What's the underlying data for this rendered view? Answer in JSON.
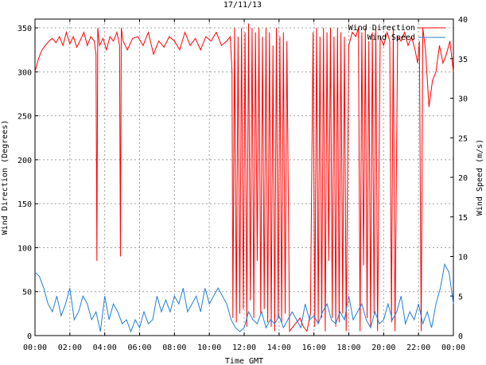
{
  "chart_data": {
    "type": "line",
    "title": "17/11/13",
    "xlabel": "Time GMT",
    "ylabel": "Wind Direction (Degrees)",
    "y2label": "Wind Speed (m/s)",
    "x_tick_labels": [
      "00:00",
      "02:00",
      "04:00",
      "06:00",
      "08:00",
      "10:00",
      "12:00",
      "14:00",
      "16:00",
      "18:00",
      "20:00",
      "22:00",
      "00:00"
    ],
    "xlim_hours": [
      0,
      24
    ],
    "ylim": [
      0,
      360
    ],
    "y_ticks": [
      0,
      50,
      100,
      150,
      200,
      250,
      300,
      350
    ],
    "y2lim": [
      0,
      40
    ],
    "y2_ticks": [
      0,
      5,
      10,
      15,
      20,
      25,
      30,
      35,
      40
    ],
    "grid": true,
    "legend_position": "top-right",
    "colors": {
      "direction": "#ff0000",
      "speed": "#1f7fd8"
    },
    "series": [
      {
        "name": "Wind Direction",
        "axis": "left",
        "x": [
          0,
          0.2,
          0.4,
          0.6,
          0.8,
          1.0,
          1.2,
          1.4,
          1.6,
          1.8,
          2.0,
          2.2,
          2.4,
          2.6,
          2.8,
          3.0,
          3.2,
          3.4,
          3.5,
          3.55,
          3.6,
          3.7,
          3.9,
          4.1,
          4.3,
          4.5,
          4.7,
          4.85,
          4.9,
          4.95,
          5.05,
          5.3,
          5.6,
          5.9,
          6.2,
          6.5,
          6.8,
          7.1,
          7.4,
          7.7,
          8.0,
          8.3,
          8.6,
          8.9,
          9.2,
          9.5,
          9.8,
          10.1,
          10.4,
          10.7,
          11.0,
          11.2,
          11.3,
          11.35,
          11.45,
          11.55,
          11.65,
          11.75,
          11.85,
          11.95,
          12.05,
          12.15,
          12.25,
          12.35,
          12.45,
          12.55,
          12.65,
          12.75,
          12.85,
          12.95,
          13.05,
          13.15,
          13.25,
          13.35,
          13.45,
          13.55,
          13.65,
          13.75,
          13.85,
          13.95,
          14.05,
          14.15,
          14.25,
          14.35,
          14.45,
          14.6,
          14.8,
          15.0,
          15.2,
          15.4,
          15.6,
          15.8,
          15.95,
          16.05,
          16.15,
          16.25,
          16.35,
          16.45,
          16.55,
          16.65,
          16.75,
          16.85,
          16.95,
          17.05,
          17.15,
          17.25,
          17.35,
          17.45,
          17.55,
          17.65,
          17.75,
          17.85,
          18.0,
          18.2,
          18.4,
          18.55,
          18.65,
          18.75,
          18.85,
          18.95,
          19.05,
          19.15,
          19.25,
          19.35,
          19.45,
          19.55,
          19.65,
          19.8,
          20.0,
          20.2,
          20.35,
          20.45,
          20.55,
          20.65,
          20.8,
          21.0,
          21.2,
          21.4,
          21.6,
          21.8,
          21.95,
          22.05,
          22.15,
          22.25,
          22.4,
          22.6,
          22.8,
          23.0,
          23.2,
          23.4,
          23.6,
          23.8,
          24.0
        ],
        "values": [
          300,
          315,
          325,
          330,
          335,
          338,
          333,
          340,
          330,
          345,
          332,
          340,
          328,
          336,
          345,
          330,
          340,
          335,
          320,
          85,
          350,
          330,
          338,
          325,
          340,
          335,
          345,
          330,
          90,
          350,
          335,
          325,
          338,
          340,
          330,
          345,
          320,
          335,
          328,
          340,
          335,
          325,
          345,
          330,
          338,
          325,
          340,
          335,
          345,
          330,
          335,
          340,
          300,
          20,
          350,
          15,
          340,
          25,
          350,
          30,
          345,
          10,
          355,
          40,
          350,
          20,
          345,
          85,
          350,
          25,
          340,
          30,
          350,
          15,
          345,
          10,
          330,
          5,
          350,
          20,
          340,
          15,
          345,
          25,
          335,
          5,
          10,
          15,
          20,
          10,
          5,
          25,
          345,
          10,
          350,
          15,
          340,
          20,
          350,
          5,
          345,
          85,
          350,
          20,
          340,
          10,
          350,
          15,
          345,
          25,
          340,
          5,
          330,
          345,
          340,
          350,
          5,
          345,
          80,
          350,
          20,
          335,
          10,
          345,
          25,
          350,
          5,
          340,
          330,
          345,
          335,
          15,
          350,
          5,
          340,
          335,
          345,
          330,
          340,
          325,
          310,
          335,
          5,
          350,
          325,
          260,
          290,
          300,
          330,
          310,
          320,
          335,
          300
        ]
      },
      {
        "name": "Wind Speed",
        "axis": "right",
        "x": [
          0,
          0.25,
          0.5,
          0.75,
          1.0,
          1.25,
          1.5,
          1.75,
          2.0,
          2.25,
          2.5,
          2.75,
          3.0,
          3.25,
          3.5,
          3.75,
          4.0,
          4.25,
          4.5,
          4.75,
          5.0,
          5.25,
          5.5,
          5.75,
          6.0,
          6.25,
          6.5,
          6.75,
          7.0,
          7.25,
          7.5,
          7.75,
          8.0,
          8.25,
          8.5,
          8.75,
          9.0,
          9.25,
          9.5,
          9.75,
          10.0,
          10.25,
          10.5,
          10.75,
          11.0,
          11.25,
          11.5,
          11.75,
          12.0,
          12.25,
          12.5,
          12.75,
          13.0,
          13.25,
          13.5,
          13.75,
          14.0,
          14.25,
          14.5,
          14.75,
          15.0,
          15.25,
          15.5,
          15.75,
          16.0,
          16.25,
          16.5,
          16.75,
          17.0,
          17.25,
          17.5,
          17.75,
          18.0,
          18.25,
          18.5,
          18.75,
          19.0,
          19.25,
          19.5,
          19.75,
          20.0,
          20.25,
          20.5,
          20.75,
          21.0,
          21.25,
          21.5,
          21.75,
          22.0,
          22.25,
          22.5,
          22.75,
          23.0,
          23.25,
          23.5,
          23.75,
          24.0
        ],
        "values": [
          8,
          7.5,
          6,
          4,
          3,
          5,
          2.5,
          4,
          6,
          2,
          3,
          5,
          4,
          2,
          3,
          0.5,
          5,
          2,
          4,
          3,
          1.5,
          2,
          0.5,
          2,
          1,
          3,
          1.5,
          2,
          5,
          3,
          4.5,
          3,
          5,
          4,
          6,
          3,
          4,
          5,
          3,
          6,
          4,
          5,
          6,
          5,
          4,
          2,
          1,
          0.5,
          1,
          3,
          2,
          1.5,
          3,
          1,
          2,
          1.5,
          2.5,
          1,
          2,
          3,
          2,
          1,
          4,
          2,
          2.5,
          1.5,
          3,
          4,
          2,
          1.5,
          3,
          2,
          5,
          2,
          3,
          4,
          2,
          1,
          3,
          1.5,
          2,
          4,
          2,
          3,
          5,
          1.5,
          3,
          2,
          4,
          1.5,
          3,
          1,
          4,
          6,
          9,
          8,
          4
        ]
      }
    ]
  }
}
